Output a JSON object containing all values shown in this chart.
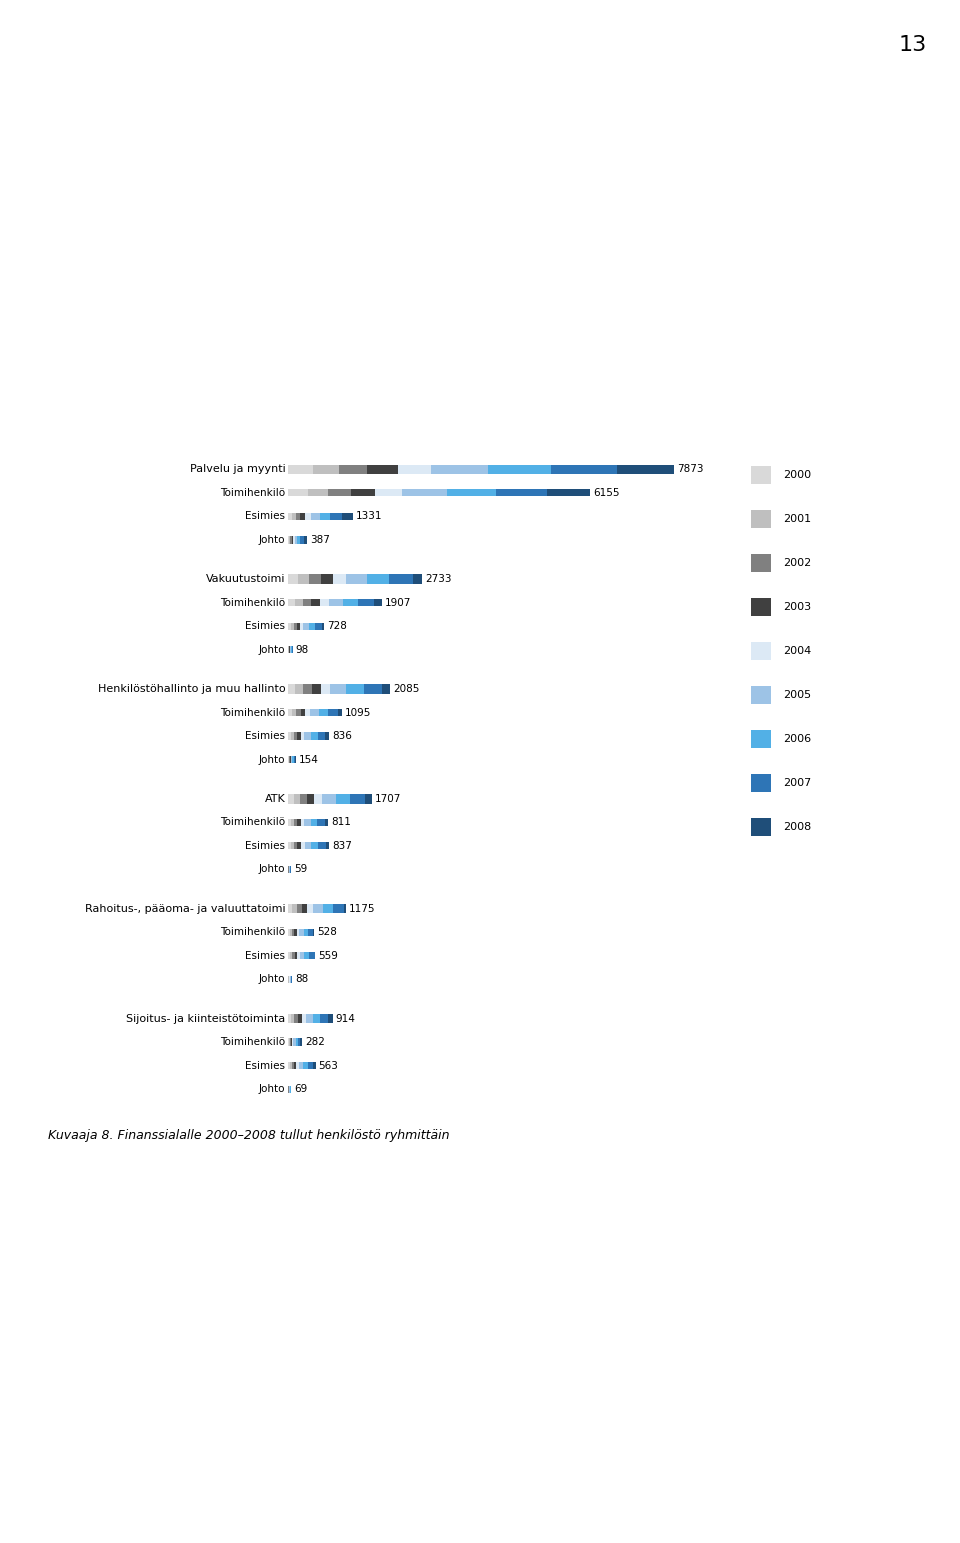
{
  "years": [
    "2000",
    "2001",
    "2002",
    "2003",
    "2004",
    "2005",
    "2006",
    "2007",
    "2008"
  ],
  "colors": {
    "2000": "#d9d9d9",
    "2001": "#bfbfbf",
    "2002": "#808080",
    "2003": "#404040",
    "2004": "#dce9f5",
    "2005": "#9dc3e6",
    "2006": "#52b0e6",
    "2007": "#2e75b6",
    "2008": "#1f4e79"
  },
  "groups": [
    {
      "name": "Palvelu ja myynti",
      "total": 7873,
      "sub": [
        {
          "label": "Toimihenkilö",
          "total": 6155,
          "yearly": [
            406,
            418,
            467,
            491,
            540,
            920,
            1000,
            1040,
            873
          ]
        },
        {
          "label": "Esimies",
          "total": 1331,
          "yearly": [
            79,
            83,
            92,
            99,
            108,
            185,
            216,
            237,
            232
          ]
        },
        {
          "label": "Johto",
          "total": 387,
          "yearly": [
            22,
            24,
            27,
            30,
            32,
            55,
            64,
            70,
            63
          ]
        }
      ],
      "yearly": [
        507,
        525,
        586,
        620,
        680,
        1160,
        1280,
        1347,
        1168
      ]
    },
    {
      "name": "Vakuutustoimi",
      "total": 2733,
      "sub": [
        {
          "label": "Toimihenkilö",
          "total": 1907,
          "yearly": [
            145,
            155,
            168,
            178,
            185,
            295,
            310,
            325,
            146
          ]
        },
        {
          "label": "Esimies",
          "total": 728,
          "yearly": [
            55,
            58,
            62,
            67,
            72,
            112,
            128,
            137,
            37
          ]
        },
        {
          "label": "Johto",
          "total": 98,
          "yearly": [
            8,
            8,
            9,
            9,
            10,
            16,
            17,
            18,
            3
          ]
        }
      ],
      "yearly": [
        208,
        221,
        239,
        254,
        267,
        423,
        455,
        480,
        186
      ]
    },
    {
      "name": "Henkilöstöhallinto ja muu hallinto",
      "total": 2085,
      "sub": [
        {
          "label": "Toimihenkilö",
          "total": 1095,
          "yearly": [
            80,
            85,
            92,
            97,
            102,
            174,
            185,
            196,
            84
          ]
        },
        {
          "label": "Esimies",
          "total": 836,
          "yearly": [
            58,
            62,
            67,
            71,
            75,
            134,
            142,
            152,
            75
          ]
        },
        {
          "label": "Johto",
          "total": 154,
          "yearly": [
            12,
            12,
            13,
            14,
            15,
            24,
            26,
            28,
            10
          ]
        }
      ],
      "yearly": [
        150,
        159,
        172,
        182,
        192,
        332,
        353,
        376,
        169
      ]
    },
    {
      "name": "ATK",
      "total": 1707,
      "sub": [
        {
          "label": "Toimihenkilö",
          "total": 811,
          "yearly": [
            58,
            61,
            66,
            70,
            74,
            131,
            140,
            149,
            62
          ]
        },
        {
          "label": "Esimies",
          "total": 837,
          "yearly": [
            60,
            63,
            69,
            73,
            77,
            135,
            144,
            153,
            63
          ]
        },
        {
          "label": "Johto",
          "total": 59,
          "yearly": [
            4,
            4,
            5,
            5,
            5,
            9,
            10,
            11,
            6
          ]
        }
      ],
      "yearly": [
        122,
        128,
        140,
        148,
        156,
        275,
        294,
        313,
        131
      ]
    },
    {
      "name": "Rahoitus-, pääoma- ja valuuttatoimi",
      "total": 1175,
      "sub": [
        {
          "label": "Toimihenkilö",
          "total": 528,
          "yearly": [
            40,
            42,
            46,
            48,
            51,
            90,
            96,
            102,
            13
          ]
        },
        {
          "label": "Esimies",
          "total": 559,
          "yearly": [
            42,
            44,
            48,
            51,
            54,
            95,
            102,
            108,
            15
          ]
        },
        {
          "label": "Johto",
          "total": 88,
          "yearly": [
            7,
            7,
            8,
            8,
            9,
            15,
            16,
            17,
            1
          ]
        }
      ],
      "yearly": [
        89,
        93,
        102,
        107,
        114,
        200,
        214,
        227,
        29
      ]
    },
    {
      "name": "Sijoitus- ja kiinteistötoiminta",
      "total": 914,
      "sub": [
        {
          "label": "Toimihenkilö",
          "total": 282,
          "yearly": [
            19,
            20,
            22,
            23,
            25,
            44,
            47,
            50,
            32
          ]
        },
        {
          "label": "Esimies",
          "total": 563,
          "yearly": [
            39,
            41,
            45,
            47,
            50,
            88,
            94,
            100,
            59
          ]
        },
        {
          "label": "Johto",
          "total": 69,
          "yearly": [
            5,
            5,
            6,
            6,
            7,
            11,
            12,
            13,
            4
          ]
        }
      ],
      "yearly": [
        63,
        66,
        73,
        76,
        82,
        143,
        153,
        163,
        95
      ]
    }
  ],
  "page_number": "13",
  "caption": "Kuvaaja 8. Finanssialalle 2000–2008 tullut henkilöstö ryhmittäin"
}
